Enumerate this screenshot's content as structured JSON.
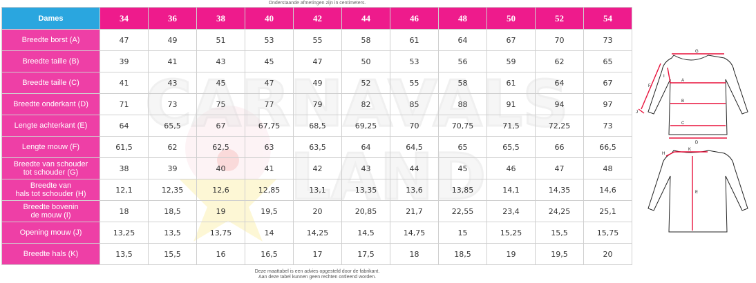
{
  "top_note": "Onderstaande afmetingen zijn in centimeters.",
  "corner_label": "Dames",
  "sizes": [
    "34",
    "36",
    "38",
    "40",
    "42",
    "44",
    "46",
    "48",
    "50",
    "52",
    "54"
  ],
  "rows": [
    {
      "label": "Breedte borst (A)",
      "values": [
        "47",
        "49",
        "51",
        "53",
        "55",
        "58",
        "61",
        "64",
        "67",
        "70",
        "73"
      ]
    },
    {
      "label": "Breedte taille (B)",
      "values": [
        "39",
        "41",
        "43",
        "45",
        "47",
        "50",
        "53",
        "56",
        "59",
        "62",
        "65"
      ]
    },
    {
      "label": "Breedte taille (C)",
      "values": [
        "41",
        "43",
        "45",
        "47",
        "49",
        "52",
        "55",
        "58",
        "61",
        "64",
        "67"
      ]
    },
    {
      "label": "Breedte onderkant (D)",
      "values": [
        "71",
        "73",
        "75",
        "77",
        "79",
        "82",
        "85",
        "88",
        "91",
        "94",
        "97"
      ]
    },
    {
      "label": "Lengte achterkant (E)",
      "values": [
        "64",
        "65,5",
        "67",
        "67,75",
        "68,5",
        "69,25",
        "70",
        "70,75",
        "71,5",
        "72,25",
        "73"
      ]
    },
    {
      "label": "Lengte mouw (F)",
      "values": [
        "61,5",
        "62",
        "62,5",
        "63",
        "63,5",
        "64",
        "64,5",
        "65",
        "65,5",
        "66",
        "66,5"
      ]
    },
    {
      "label": "Breedte van schouder\ntot schouder (G)",
      "values": [
        "38",
        "39",
        "40",
        "41",
        "42",
        "43",
        "44",
        "45",
        "46",
        "47",
        "48"
      ]
    },
    {
      "label": "Breedte van\nhals tot schouder (H)",
      "values": [
        "12,1",
        "12,35",
        "12,6",
        "12,85",
        "13,1",
        "13,35",
        "13,6",
        "13,85",
        "14,1",
        "14,35",
        "14,6"
      ]
    },
    {
      "label": "Breedte bovenin\nde mouw (I)",
      "values": [
        "18",
        "18,5",
        "19",
        "19,5",
        "20",
        "20,85",
        "21,7",
        "22,55",
        "23,4",
        "24,25",
        "25,1"
      ]
    },
    {
      "label": "Opening mouw (J)",
      "values": [
        "13,25",
        "13,5",
        "13,75",
        "14",
        "14,25",
        "14,5",
        "14,75",
        "15",
        "15,25",
        "15,5",
        "15,75"
      ]
    },
    {
      "label": "Breedte hals (K)",
      "values": [
        "13,5",
        "15,5",
        "16",
        "16,5",
        "17",
        "17,5",
        "18",
        "18,5",
        "19",
        "19,5",
        "20"
      ]
    }
  ],
  "bottom_note_1": "Deze maattabel is een advies opgesteld door de fabrikant.",
  "bottom_note_2": "Aan deze tabel kunnen geen rechten ontleend worden.",
  "watermark": {
    "line1": "CARNAVALS",
    "line2": "LAND"
  },
  "diagram_letters": {
    "a": "A",
    "b": "B",
    "c": "C",
    "d": "D",
    "e": "E",
    "f": "F",
    "g": "G",
    "h": "H",
    "i": "I",
    "j": "J",
    "k": "K"
  },
  "colors": {
    "header_pink": "#ee1b8c",
    "label_pink": "#ee3fa6",
    "corner_blue": "#2aa6df",
    "measure_red": "#e8103a"
  }
}
